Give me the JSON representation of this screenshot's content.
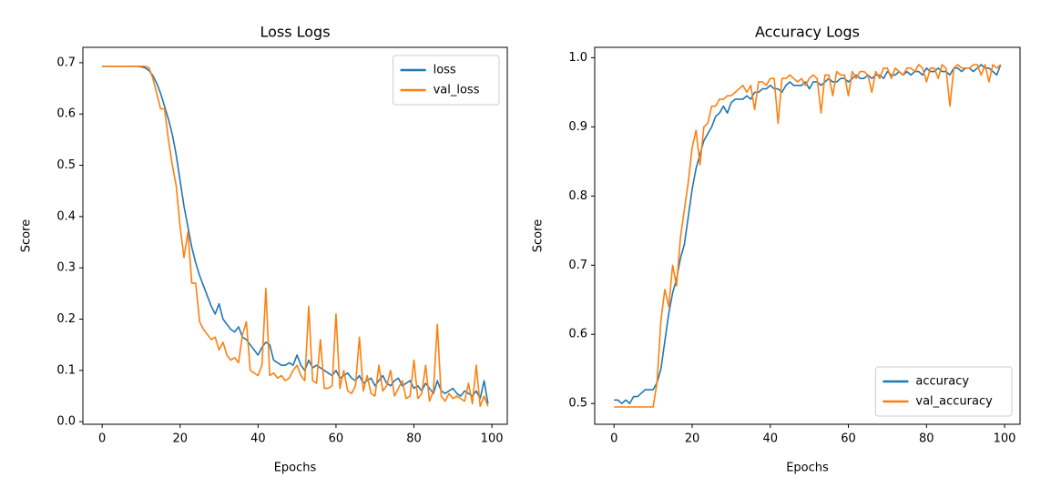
{
  "chart_data": [
    {
      "type": "line",
      "title": "Loss Logs",
      "xlabel": "Epochs",
      "ylabel": "Score",
      "x": [
        0,
        1,
        2,
        3,
        4,
        5,
        6,
        7,
        8,
        9,
        10,
        11,
        12,
        13,
        14,
        15,
        16,
        17,
        18,
        19,
        20,
        21,
        22,
        23,
        24,
        25,
        26,
        27,
        28,
        29,
        30,
        31,
        32,
        33,
        34,
        35,
        36,
        37,
        38,
        39,
        40,
        41,
        42,
        43,
        44,
        45,
        46,
        47,
        48,
        49,
        50,
        51,
        52,
        53,
        54,
        55,
        56,
        57,
        58,
        59,
        60,
        61,
        62,
        63,
        64,
        65,
        66,
        67,
        68,
        69,
        70,
        71,
        72,
        73,
        74,
        75,
        76,
        77,
        78,
        79,
        80,
        81,
        82,
        83,
        84,
        85,
        86,
        87,
        88,
        89,
        90,
        91,
        92,
        93,
        94,
        95,
        96,
        97,
        98,
        99
      ],
      "series": [
        {
          "name": "loss",
          "color": "#1f77b4",
          "values": [
            0.693,
            0.693,
            0.693,
            0.693,
            0.693,
            0.693,
            0.693,
            0.693,
            0.693,
            0.693,
            0.692,
            0.69,
            0.685,
            0.675,
            0.66,
            0.64,
            0.615,
            0.59,
            0.56,
            0.52,
            0.47,
            0.42,
            0.38,
            0.34,
            0.31,
            0.285,
            0.265,
            0.245,
            0.225,
            0.21,
            0.23,
            0.2,
            0.19,
            0.18,
            0.175,
            0.185,
            0.165,
            0.16,
            0.15,
            0.14,
            0.13,
            0.145,
            0.155,
            0.15,
            0.12,
            0.115,
            0.11,
            0.11,
            0.115,
            0.11,
            0.13,
            0.11,
            0.1,
            0.12,
            0.105,
            0.11,
            0.105,
            0.1,
            0.095,
            0.09,
            0.1,
            0.085,
            0.09,
            0.095,
            0.085,
            0.08,
            0.09,
            0.075,
            0.08,
            0.085,
            0.07,
            0.08,
            0.09,
            0.075,
            0.07,
            0.08,
            0.085,
            0.07,
            0.075,
            0.08,
            0.065,
            0.07,
            0.06,
            0.075,
            0.065,
            0.055,
            0.08,
            0.06,
            0.055,
            0.06,
            0.065,
            0.055,
            0.05,
            0.06,
            0.055,
            0.05,
            0.06,
            0.045,
            0.08,
            0.035
          ]
        },
        {
          "name": "val_loss",
          "color": "#ff7f0e",
          "values": [
            0.693,
            0.693,
            0.693,
            0.693,
            0.693,
            0.693,
            0.693,
            0.693,
            0.693,
            0.693,
            0.693,
            0.693,
            0.69,
            0.67,
            0.64,
            0.61,
            0.61,
            0.55,
            0.5,
            0.46,
            0.38,
            0.32,
            0.37,
            0.27,
            0.27,
            0.195,
            0.18,
            0.17,
            0.16,
            0.165,
            0.14,
            0.155,
            0.13,
            0.12,
            0.125,
            0.115,
            0.17,
            0.195,
            0.1,
            0.095,
            0.09,
            0.11,
            0.26,
            0.09,
            0.095,
            0.085,
            0.09,
            0.08,
            0.085,
            0.1,
            0.11,
            0.09,
            0.08,
            0.225,
            0.08,
            0.075,
            0.16,
            0.065,
            0.065,
            0.07,
            0.21,
            0.065,
            0.1,
            0.06,
            0.055,
            0.07,
            0.165,
            0.06,
            0.09,
            0.055,
            0.05,
            0.11,
            0.06,
            0.07,
            0.1,
            0.05,
            0.065,
            0.08,
            0.045,
            0.05,
            0.12,
            0.045,
            0.055,
            0.11,
            0.04,
            0.06,
            0.19,
            0.05,
            0.04,
            0.055,
            0.045,
            0.05,
            0.045,
            0.04,
            0.075,
            0.035,
            0.11,
            0.03,
            0.05,
            0.03
          ]
        }
      ],
      "xlim": [
        -4.95,
        103.95
      ],
      "xticks": [
        0,
        20,
        40,
        60,
        80,
        100
      ],
      "ylim": [
        -0.005,
        0.73
      ],
      "yticks": [
        {
          "value": 0,
          "label": "0.0"
        },
        0.1,
        0.2,
        0.3,
        0.4,
        0.5,
        0.6,
        0.7
      ],
      "legend": "upper right"
    },
    {
      "type": "line",
      "title": "Accuracy Logs",
      "xlabel": "Epochs",
      "ylabel": "Score",
      "x": [
        0,
        1,
        2,
        3,
        4,
        5,
        6,
        7,
        8,
        9,
        10,
        11,
        12,
        13,
        14,
        15,
        16,
        17,
        18,
        19,
        20,
        21,
        22,
        23,
        24,
        25,
        26,
        27,
        28,
        29,
        30,
        31,
        32,
        33,
        34,
        35,
        36,
        37,
        38,
        39,
        40,
        41,
        42,
        43,
        44,
        45,
        46,
        47,
        48,
        49,
        50,
        51,
        52,
        53,
        54,
        55,
        56,
        57,
        58,
        59,
        60,
        61,
        62,
        63,
        64,
        65,
        66,
        67,
        68,
        69,
        70,
        71,
        72,
        73,
        74,
        75,
        76,
        77,
        78,
        79,
        80,
        81,
        82,
        83,
        84,
        85,
        86,
        87,
        88,
        89,
        90,
        91,
        92,
        93,
        94,
        95,
        96,
        97,
        98,
        99
      ],
      "series": [
        {
          "name": "accuracy",
          "color": "#1f77b4",
          "values": [
            0.505,
            0.505,
            0.5,
            0.505,
            0.5,
            0.51,
            0.51,
            0.515,
            0.52,
            0.52,
            0.52,
            0.53,
            0.55,
            0.59,
            0.63,
            0.66,
            0.68,
            0.71,
            0.73,
            0.77,
            0.81,
            0.84,
            0.86,
            0.88,
            0.89,
            0.9,
            0.915,
            0.92,
            0.93,
            0.92,
            0.935,
            0.94,
            0.94,
            0.94,
            0.945,
            0.94,
            0.95,
            0.95,
            0.955,
            0.955,
            0.96,
            0.955,
            0.955,
            0.95,
            0.96,
            0.965,
            0.96,
            0.96,
            0.96,
            0.965,
            0.955,
            0.965,
            0.965,
            0.96,
            0.965,
            0.97,
            0.965,
            0.965,
            0.97,
            0.97,
            0.965,
            0.97,
            0.975,
            0.97,
            0.97,
            0.975,
            0.97,
            0.975,
            0.975,
            0.97,
            0.98,
            0.975,
            0.975,
            0.98,
            0.975,
            0.98,
            0.975,
            0.98,
            0.98,
            0.975,
            0.985,
            0.98,
            0.98,
            0.985,
            0.98,
            0.98,
            0.975,
            0.985,
            0.985,
            0.98,
            0.985,
            0.985,
            0.98,
            0.985,
            0.99,
            0.985,
            0.985,
            0.98,
            0.975,
            0.99
          ]
        },
        {
          "name": "val_accuracy",
          "color": "#ff7f0e",
          "values": [
            0.495,
            0.495,
            0.495,
            0.495,
            0.495,
            0.495,
            0.495,
            0.495,
            0.495,
            0.495,
            0.495,
            0.53,
            0.62,
            0.665,
            0.64,
            0.7,
            0.67,
            0.74,
            0.78,
            0.82,
            0.87,
            0.895,
            0.845,
            0.9,
            0.905,
            0.93,
            0.93,
            0.94,
            0.94,
            0.945,
            0.945,
            0.95,
            0.955,
            0.96,
            0.95,
            0.96,
            0.925,
            0.965,
            0.965,
            0.96,
            0.97,
            0.97,
            0.905,
            0.97,
            0.97,
            0.975,
            0.97,
            0.965,
            0.97,
            0.96,
            0.97,
            0.975,
            0.97,
            0.92,
            0.975,
            0.975,
            0.945,
            0.98,
            0.975,
            0.975,
            0.945,
            0.98,
            0.97,
            0.98,
            0.98,
            0.975,
            0.95,
            0.98,
            0.97,
            0.985,
            0.985,
            0.97,
            0.985,
            0.98,
            0.975,
            0.985,
            0.985,
            0.98,
            0.99,
            0.985,
            0.965,
            0.985,
            0.985,
            0.97,
            0.99,
            0.985,
            0.93,
            0.985,
            0.99,
            0.985,
            0.985,
            0.985,
            0.99,
            0.99,
            0.975,
            0.99,
            0.965,
            0.99,
            0.985,
            0.99
          ]
        }
      ],
      "xlim": [
        -4.95,
        103.95
      ],
      "xticks": [
        0,
        20,
        40,
        60,
        80,
        100
      ],
      "ylim": [
        0.47,
        1.015
      ],
      "yticks": [
        0.5,
        0.6,
        0.7,
        0.8,
        0.9,
        {
          "value": 1,
          "label": "1.0"
        }
      ],
      "legend": "lower right"
    }
  ]
}
